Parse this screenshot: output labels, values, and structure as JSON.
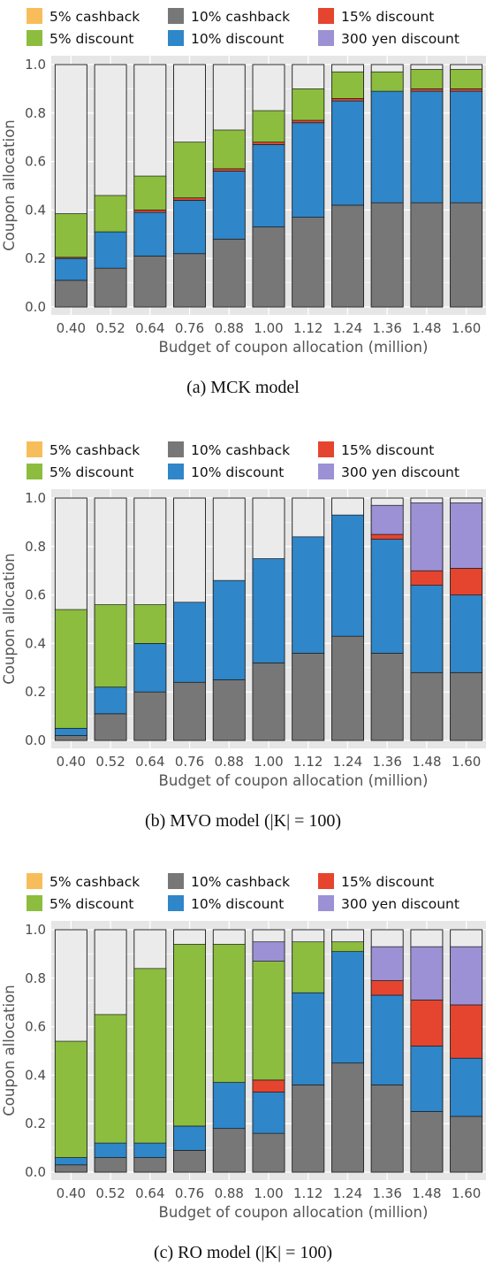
{
  "colors": {
    "cashback_5": "#f8bd5b",
    "discount_5": "#8cbd3e",
    "cashback_10": "#777777",
    "discount_10": "#2f86c8",
    "discount_15": "#e5452f",
    "yen_300": "#9b91d4",
    "remainder": "#ebebeb",
    "panel_bg": "#e6e6e6",
    "grid": "#ffffff"
  },
  "chart_data": [
    {
      "type": "bar",
      "stacked": true,
      "caption": "(a) MCK model",
      "xlabel": "Budget of coupon allocation (million)",
      "ylabel": "Coupon allocation",
      "ylim": [
        0,
        1.0
      ],
      "yticks": [
        "0.0",
        "0.2",
        "0.4",
        "0.6",
        "0.8",
        "1.0"
      ],
      "legend_position": "top",
      "categories": [
        "0.40",
        "0.52",
        "0.64",
        "0.76",
        "0.88",
        "1.00",
        "1.12",
        "1.24",
        "1.36",
        "1.48",
        "1.60"
      ],
      "series": [
        {
          "name": "10% cashback",
          "color_key": "cashback_10",
          "values": [
            0.11,
            0.16,
            0.21,
            0.22,
            0.28,
            0.33,
            0.37,
            0.42,
            0.43,
            0.43,
            0.43
          ]
        },
        {
          "name": "10% discount",
          "color_key": "discount_10",
          "values": [
            0.09,
            0.15,
            0.18,
            0.22,
            0.28,
            0.34,
            0.39,
            0.43,
            0.46,
            0.46,
            0.46
          ]
        },
        {
          "name": "15% discount",
          "color_key": "discount_15",
          "values": [
            0.005,
            0.0,
            0.01,
            0.01,
            0.01,
            0.01,
            0.01,
            0.01,
            0.0,
            0.01,
            0.01
          ]
        },
        {
          "name": "5% discount",
          "color_key": "discount_5",
          "values": [
            0.18,
            0.15,
            0.14,
            0.23,
            0.16,
            0.13,
            0.13,
            0.11,
            0.08,
            0.08,
            0.08
          ]
        },
        {
          "name": "300 yen discount",
          "color_key": "yen_300",
          "values": [
            0,
            0,
            0,
            0,
            0,
            0,
            0,
            0,
            0,
            0,
            0
          ]
        },
        {
          "name": "5% cashback",
          "color_key": "cashback_5",
          "values": [
            0,
            0,
            0,
            0,
            0,
            0,
            0,
            0,
            0,
            0,
            0
          ]
        }
      ]
    },
    {
      "type": "bar",
      "stacked": true,
      "caption": "(b) MVO model (|K| = 100)",
      "xlabel": "Budget of coupon allocation (million)",
      "ylabel": "Coupon allocation",
      "ylim": [
        0,
        1.0
      ],
      "yticks": [
        "0.0",
        "0.2",
        "0.4",
        "0.6",
        "0.8",
        "1.0"
      ],
      "legend_position": "top",
      "categories": [
        "0.40",
        "0.52",
        "0.64",
        "0.76",
        "0.88",
        "1.00",
        "1.12",
        "1.24",
        "1.36",
        "1.48",
        "1.60"
      ],
      "series": [
        {
          "name": "10% cashback",
          "color_key": "cashback_10",
          "values": [
            0.02,
            0.11,
            0.2,
            0.24,
            0.25,
            0.32,
            0.36,
            0.43,
            0.36,
            0.28,
            0.28
          ]
        },
        {
          "name": "10% discount",
          "color_key": "discount_10",
          "values": [
            0.03,
            0.11,
            0.2,
            0.33,
            0.41,
            0.43,
            0.48,
            0.5,
            0.47,
            0.36,
            0.32
          ]
        },
        {
          "name": "15% discount",
          "color_key": "discount_15",
          "values": [
            0,
            0,
            0,
            0,
            0,
            0,
            0,
            0,
            0.02,
            0.06,
            0.11
          ]
        },
        {
          "name": "5% discount",
          "color_key": "discount_5",
          "values": [
            0.49,
            0.34,
            0.16,
            0,
            0,
            0,
            0,
            0,
            0,
            0,
            0
          ]
        },
        {
          "name": "300 yen discount",
          "color_key": "yen_300",
          "values": [
            0,
            0,
            0,
            0,
            0,
            0,
            0,
            0,
            0.12,
            0.28,
            0.27
          ]
        },
        {
          "name": "5% cashback",
          "color_key": "cashback_5",
          "values": [
            0,
            0,
            0,
            0,
            0,
            0,
            0,
            0,
            0,
            0,
            0
          ]
        }
      ]
    },
    {
      "type": "bar",
      "stacked": true,
      "caption": "(c) RO model (|K| = 100)",
      "xlabel": "Budget of coupon allocation (million)",
      "ylabel": "Coupon allocation",
      "ylim": [
        0,
        1.0
      ],
      "yticks": [
        "0.0",
        "0.2",
        "0.4",
        "0.6",
        "0.8",
        "1.0"
      ],
      "legend_position": "top",
      "categories": [
        "0.40",
        "0.52",
        "0.64",
        "0.76",
        "0.88",
        "1.00",
        "1.12",
        "1.24",
        "1.36",
        "1.48",
        "1.60"
      ],
      "series": [
        {
          "name": "10% cashback",
          "color_key": "cashback_10",
          "values": [
            0.03,
            0.06,
            0.06,
            0.09,
            0.18,
            0.16,
            0.36,
            0.45,
            0.36,
            0.25,
            0.23
          ]
        },
        {
          "name": "10% discount",
          "color_key": "discount_10",
          "values": [
            0.03,
            0.06,
            0.06,
            0.1,
            0.19,
            0.17,
            0.38,
            0.46,
            0.37,
            0.27,
            0.24
          ]
        },
        {
          "name": "15% discount",
          "color_key": "discount_15",
          "values": [
            0,
            0,
            0,
            0,
            0,
            0.05,
            0,
            0,
            0.06,
            0.19,
            0.22
          ]
        },
        {
          "name": "5% discount",
          "color_key": "discount_5",
          "values": [
            0.48,
            0.53,
            0.72,
            0.75,
            0.57,
            0.49,
            0.21,
            0.04,
            0,
            0,
            0
          ]
        },
        {
          "name": "300 yen discount",
          "color_key": "yen_300",
          "values": [
            0,
            0,
            0,
            0,
            0,
            0.08,
            0,
            0,
            0.14,
            0.22,
            0.24
          ]
        },
        {
          "name": "5% cashback",
          "color_key": "cashback_5",
          "values": [
            0,
            0,
            0,
            0,
            0,
            0,
            0,
            0,
            0,
            0,
            0
          ]
        }
      ]
    }
  ],
  "legend": [
    {
      "label": "5% cashback",
      "color_key": "cashback_5"
    },
    {
      "label": "10% cashback",
      "color_key": "cashback_10"
    },
    {
      "label": "15% discount",
      "color_key": "discount_15"
    },
    {
      "label": "5% discount",
      "color_key": "discount_5"
    },
    {
      "label": "10% discount",
      "color_key": "discount_10"
    },
    {
      "label": "300 yen discount",
      "color_key": "yen_300"
    }
  ]
}
